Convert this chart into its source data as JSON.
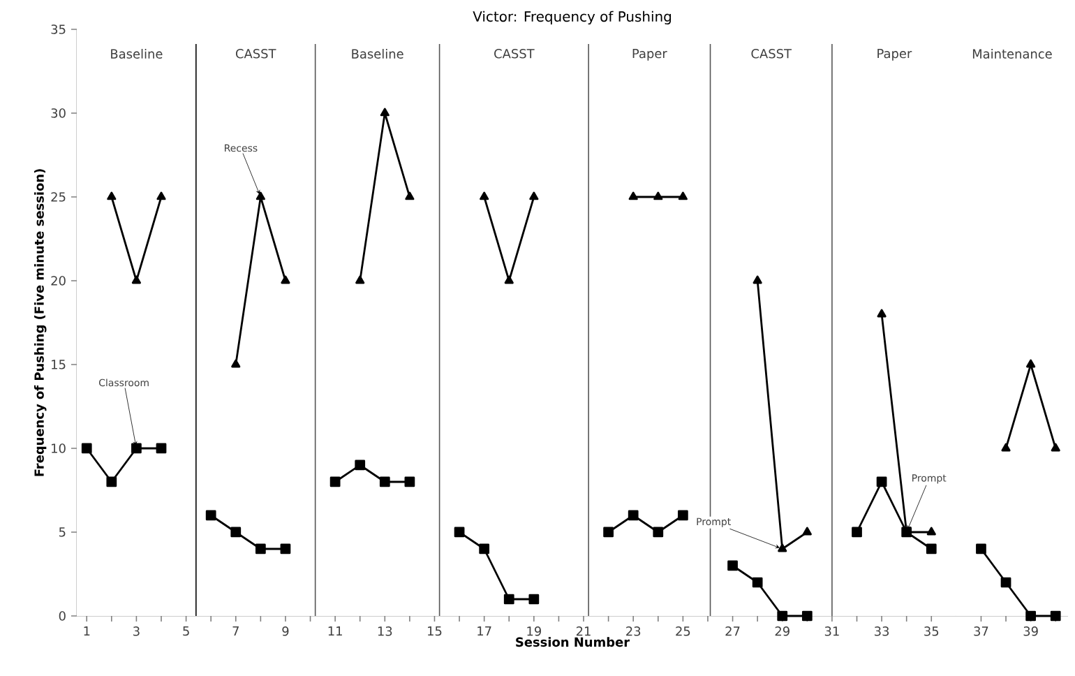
{
  "chart_data": {
    "type": "line",
    "title": "Victor:  Frequency of Pushing",
    "xlabel": "Session Number",
    "ylabel": "Frequency of Pushing (Five minute session)",
    "x": [
      1,
      2,
      3,
      4,
      5,
      6,
      7,
      8,
      9,
      10,
      11,
      12,
      13,
      14,
      15,
      16,
      17,
      18,
      19,
      20,
      21,
      22,
      23,
      24,
      25,
      26,
      27,
      28,
      29,
      30,
      31,
      32,
      33,
      34,
      35,
      36,
      37,
      38,
      39,
      40
    ],
    "series": [
      {
        "color": "#000000",
        "marker": "triangle",
        "values": [
          null,
          25,
          20,
          25,
          null,
          null,
          15,
          25,
          20,
          null,
          null,
          20,
          30,
          25,
          null,
          null,
          25,
          20,
          25,
          null,
          null,
          null,
          25,
          25,
          25,
          null,
          null,
          20,
          4,
          5,
          null,
          null,
          18,
          5,
          5,
          null,
          null,
          10,
          15,
          10
        ]
      },
      {
        "color": "#000000",
        "marker": "square",
        "values": [
          10,
          8,
          10,
          10,
          null,
          6,
          5,
          4,
          4,
          null,
          8,
          9,
          8,
          8,
          null,
          5,
          4,
          1,
          1,
          null,
          null,
          5,
          6,
          5,
          6,
          null,
          3,
          2,
          0,
          0,
          null,
          5,
          8,
          5,
          4,
          null,
          4,
          2,
          0,
          0
        ]
      }
    ],
    "xlim": [
      0.6,
      40.5
    ],
    "ylim": [
      0,
      35
    ],
    "xticks": [
      1,
      {
        "value": 2,
        "label": null
      },
      3,
      {
        "value": 4,
        "label": null
      },
      5,
      {
        "value": 6,
        "label": null
      },
      7,
      {
        "value": 8,
        "label": null
      },
      9,
      {
        "value": 10,
        "label": null
      },
      11,
      {
        "value": 12,
        "label": null
      },
      13,
      {
        "value": 14,
        "label": null
      },
      15,
      {
        "value": 16,
        "label": null
      },
      17,
      {
        "value": 18,
        "label": null
      },
      19,
      {
        "value": 20,
        "label": null
      },
      21,
      {
        "value": 22,
        "label": null
      },
      23,
      {
        "value": 24,
        "label": null
      },
      25,
      {
        "value": 26,
        "label": null
      },
      27,
      {
        "value": 28,
        "label": null
      },
      29,
      {
        "value": 30,
        "label": null
      },
      31,
      {
        "value": 32,
        "label": null
      },
      33,
      {
        "value": 34,
        "label": null
      },
      35,
      37,
      {
        "value": 38,
        "label": null
      },
      39,
      {
        "value": 40,
        "label": null
      }
    ],
    "yticks": [
      0,
      5,
      10,
      15,
      20,
      25,
      30,
      35
    ],
    "ref_lines": [
      {
        "axis": "x",
        "value": 5.4,
        "color": "#000000"
      },
      {
        "axis": "x",
        "value": 10.2,
        "color": "#555555"
      },
      {
        "axis": "x",
        "value": 15.2,
        "color": "#555555"
      },
      {
        "axis": "x",
        "value": 21.2,
        "color": "#555555"
      },
      {
        "axis": "x",
        "value": 26.1,
        "color": "#555555"
      },
      {
        "axis": "x",
        "value": 31,
        "color": "#555555"
      }
    ],
    "bands": [
      {
        "axis": "x",
        "from": 0.6,
        "to": 5.4,
        "label": "Baseline",
        "color": "#ffffff"
      },
      {
        "axis": "x",
        "from": 5.4,
        "to": 10.2,
        "label": "CASST",
        "color": "#ffffff"
      },
      {
        "axis": "x",
        "from": 10.2,
        "to": 15.2,
        "label": "Baseline",
        "color": "#ffffff"
      },
      {
        "axis": "x",
        "from": 15.2,
        "to": 21.2,
        "label": "CASST",
        "color": "#ffffff"
      },
      {
        "axis": "x",
        "from": 21.2,
        "to": 26.1,
        "label": "Paper",
        "color": "#ffffff"
      },
      {
        "axis": "x",
        "from": 26.1,
        "to": 31,
        "label": "CASST",
        "color": "#ffffff"
      },
      {
        "axis": "x",
        "from": 31,
        "to": 36,
        "label": "Paper",
        "color": "#ffffff"
      },
      {
        "axis": "x",
        "from": 36,
        "to": 40.5,
        "label": "Maintenance",
        "color": "#ffffff"
      }
    ],
    "annotations": [
      {
        "text": "Classroom",
        "x": 3,
        "y": 10
      },
      {
        "text": "Recess",
        "x": 8,
        "y": 25
      },
      {
        "text": "Prompt",
        "x": 29,
        "y": 4
      },
      {
        "text": "Prompt",
        "x": 34,
        "y": 5
      }
    ],
    "grid": false,
    "line_style": "solid"
  }
}
